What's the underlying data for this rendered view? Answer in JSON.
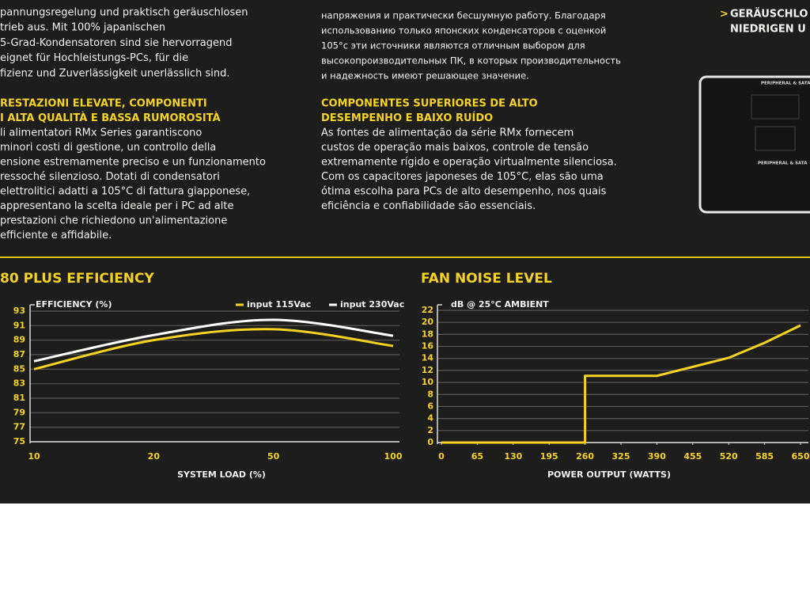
{
  "text_columns": [
    {
      "intro": [
        "pannungsregelung und praktisch geräuschlosen",
        "trieb aus. Mit 100% japanischen",
        "5-Grad-Kondensatoren sind sie hervorragend",
        "eignet für Hochleistungs-PCs, für die",
        "fizienz und Zuverlässigkeit unerlässlich sind."
      ],
      "heading": [
        "RESTAZIONI ELEVATE, COMPONENTI",
        "I ALTA QUALITÀ E BASSA RUMOROSITÀ"
      ],
      "body": [
        "li alimentatori RMx Series garantiscono",
        "minori costi di gestione, un controllo della",
        "ensione estremamente preciso e un funzionamento",
        "ressoché silenzioso. Dotati di condensatori",
        "elettrolitici adatti a 105°C di fattura giapponese,",
        "appresentano la scelta ideale per i PC ad alte",
        "prestazioni che richiedono un'alimentazione",
        "efficiente e affidabile."
      ]
    },
    {
      "intro": [
        "напряжения и практически бесшумную работу. Благодаря",
        "использованию только японских конденсаторов с оценкой",
        "105°c эти источники являются отличным выбором для",
        "высокопроизводительных ПК, в которых производительность",
        "и надежность имеют решающее значение."
      ],
      "heading": [
        "COMPONENTES SUPERIORES DE ALTO",
        "DESEMPENHO E BAIXO RUÍDO"
      ],
      "body": [
        "As fontes de alimentação da série RMx fornecem",
        "custos de operação mais baixos, controle de tensão",
        "extremamente rígido e operação virtualmente silenciosa.",
        "Com os capacitores japoneses de 105°C, elas são uma",
        "ótima escolha para PCs de alto desempenho, nos quais",
        "eficiência e confiabilidade são essenciais."
      ]
    }
  ],
  "right_panel": {
    "bullet": ">",
    "lines": [
      "GERÄUSCHLO",
      "NIEDRIGEN U"
    ],
    "port_labels": [
      "PERIPHERAL & SATA",
      "PERIPHERAL & SATA"
    ]
  },
  "chart_data": [
    {
      "type": "line",
      "title": "80 PLUS EFFICIENCY",
      "ylabel": "EFFICIENCY (%)",
      "xlabel": "SYSTEM LOAD (%)",
      "categories": [
        "10",
        "20",
        "50",
        "100"
      ],
      "series": [
        {
          "name": "input 115Vac",
          "color": "#f5d320",
          "values": [
            85.0,
            89.0,
            90.5,
            88.2
          ]
        },
        {
          "name": "input 230Vac",
          "color": "#ffffff",
          "values": [
            86.1,
            89.7,
            91.8,
            89.6
          ]
        }
      ],
      "ylim": [
        75,
        93
      ],
      "yticks": [
        75,
        77,
        79,
        81,
        83,
        85,
        87,
        89,
        91,
        93
      ],
      "grid": true,
      "smooth": true,
      "legend": "top-right"
    },
    {
      "type": "line",
      "title": "FAN NOISE LEVEL",
      "ylabel": "dB @ 25°C AMBIENT",
      "xlabel": "POWER OUTPUT (WATTS)",
      "x": [
        0,
        260,
        260,
        390,
        520,
        585,
        650
      ],
      "series": [
        {
          "color": "#f5d320",
          "values": [
            0,
            0,
            11.1,
            11.1,
            14.1,
            16.6,
            19.5
          ]
        }
      ],
      "xlim": [
        0,
        650
      ],
      "xticks": [
        0,
        65,
        130,
        195,
        260,
        325,
        390,
        455,
        520,
        585,
        650
      ],
      "ylim": [
        0,
        22
      ],
      "yticks": [
        0,
        2,
        4,
        6,
        8,
        10,
        12,
        14,
        16,
        18,
        20,
        22
      ],
      "grid": true
    }
  ]
}
